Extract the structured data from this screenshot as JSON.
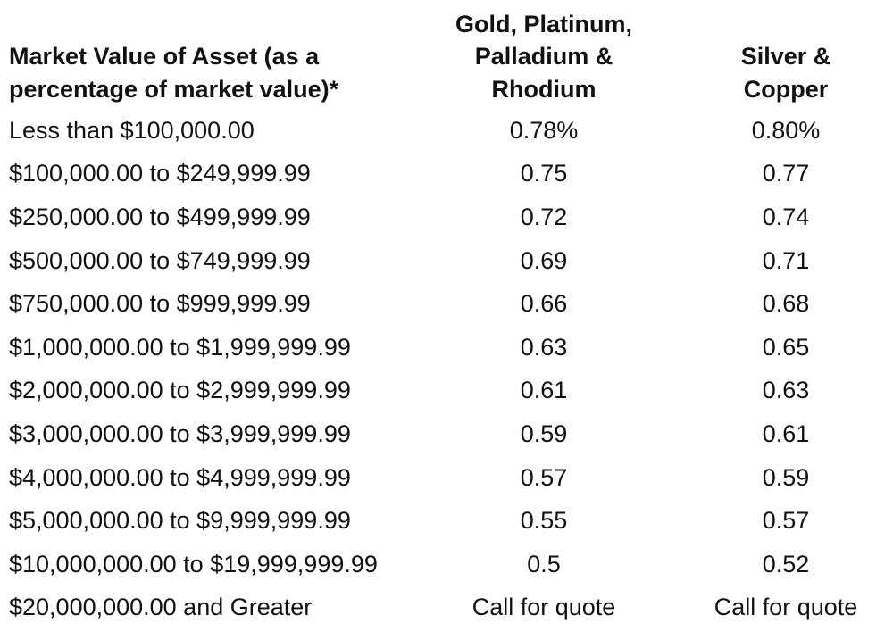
{
  "table": {
    "headers": {
      "label_line1": "Market Value of Asset (as a",
      "label_line2": "percentage of market value)*",
      "gold_line1": "Gold, Platinum,",
      "gold_line2": "Palladium &",
      "gold_line3": "Rhodium",
      "silver_line1": "Silver &",
      "silver_line2": "Copper"
    },
    "rows": [
      {
        "range": "Less than $100,000.00",
        "gold": "0.78%",
        "silver": "0.80%"
      },
      {
        "range": "$100,000.00 to $249,999.99",
        "gold": "0.75",
        "silver": "0.77"
      },
      {
        "range": "$250,000.00 to $499,999.99",
        "gold": "0.72",
        "silver": "0.74"
      },
      {
        "range": "$500,000.00 to $749,999.99",
        "gold": "0.69",
        "silver": "0.71"
      },
      {
        "range": "$750,000.00 to $999,999.99",
        "gold": "0.66",
        "silver": "0.68"
      },
      {
        "range": "$1,000,000.00 to $1,999,999.99",
        "gold": "0.63",
        "silver": "0.65"
      },
      {
        "range": "$2,000,000.00 to $2,999,999.99",
        "gold": "0.61",
        "silver": "0.63"
      },
      {
        "range": "$3,000,000.00 to $3,999,999.99",
        "gold": "0.59",
        "silver": "0.61"
      },
      {
        "range": "$4,000,000.00 to $4,999,999.99",
        "gold": "0.57",
        "silver": "0.59"
      },
      {
        "range": "$5,000,000.00 to $9,999,999.99",
        "gold": "0.55",
        "silver": "0.57"
      },
      {
        "range": "$10,000,000.00 to $19,999,999.99",
        "gold": "0.5",
        "silver": "0.52"
      },
      {
        "range": "$20,000,000.00 and Greater",
        "gold": "Call for quote",
        "silver": "Call for quote"
      }
    ]
  }
}
